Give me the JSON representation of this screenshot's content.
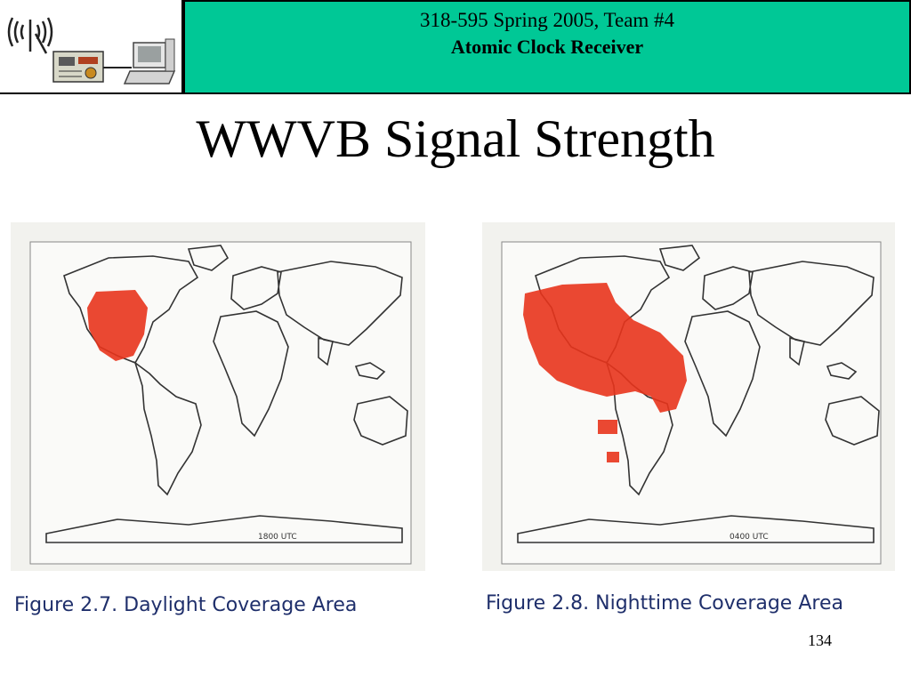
{
  "header": {
    "line1": "318-595 Spring 2005, Team #4",
    "line2": "Atomic Clock Receiver",
    "banner_color": "#00c896"
  },
  "title": "WWVB Signal Strength",
  "maps": [
    {
      "label": "1800 UTC",
      "caption": "Figure 2.7. Daylight Coverage Area",
      "coverage_color": "#e8341c"
    },
    {
      "label": "0400 UTC",
      "caption": "Figure 2.8. Nighttime Coverage Area",
      "coverage_color": "#e8341c"
    }
  ],
  "logo": {
    "icons": [
      "antenna-icon",
      "receiver-board-icon",
      "computer-icon"
    ]
  },
  "page_number": "134"
}
